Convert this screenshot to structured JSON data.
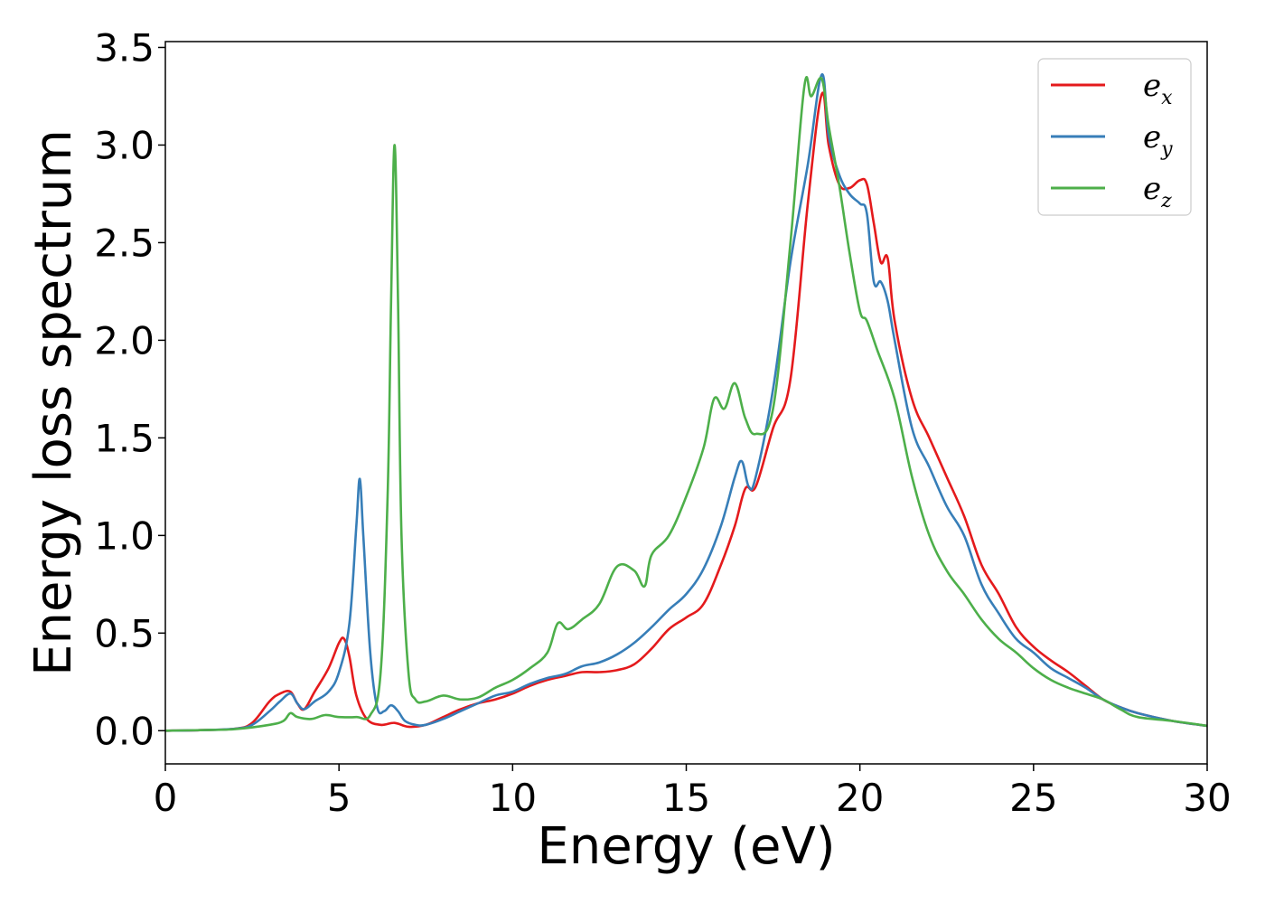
{
  "chart_data": {
    "type": "line",
    "title": "",
    "xlabel": "Energy (eV)",
    "ylabel": "Energy loss spectrum",
    "xlim": [
      0,
      30
    ],
    "ylim": [
      -0.17,
      3.53
    ],
    "xticks": [
      0,
      5,
      10,
      15,
      20,
      25,
      30
    ],
    "xtick_labels": [
      "0",
      "5",
      "10",
      "15",
      "20",
      "25",
      "30"
    ],
    "yticks": [
      0.0,
      0.5,
      1.0,
      1.5,
      2.0,
      2.5,
      3.0,
      3.5
    ],
    "ytick_labels": [
      "0.0",
      "0.5",
      "1.0",
      "1.5",
      "2.0",
      "2.5",
      "3.0",
      "3.5"
    ],
    "grid": false,
    "legend_position": "top-right",
    "series": [
      {
        "name": "e_x",
        "label_base": "e",
        "label_sub": "x",
        "color": "#e41a1c",
        "x": [
          0,
          1,
          2,
          2.5,
          3,
          3.3,
          3.6,
          3.8,
          4.0,
          4.3,
          4.7,
          5.0,
          5.15,
          5.3,
          5.5,
          5.8,
          6.2,
          6.6,
          7.0,
          7.5,
          8,
          8.5,
          9,
          9.5,
          10,
          10.5,
          11,
          11.5,
          12,
          12.5,
          13,
          13.5,
          14,
          14.5,
          15,
          15.5,
          16,
          16.4,
          16.7,
          17.0,
          17.5,
          18.0,
          18.5,
          18.9,
          19.1,
          19.4,
          19.7,
          20.0,
          20.2,
          20.4,
          20.6,
          20.8,
          21.0,
          21.5,
          22,
          22.5,
          23,
          23.5,
          24,
          24.5,
          25,
          25.5,
          26,
          26.5,
          27,
          27.5,
          28,
          29,
          30
        ],
        "y": [
          0,
          0.003,
          0.01,
          0.04,
          0.15,
          0.19,
          0.2,
          0.14,
          0.11,
          0.2,
          0.32,
          0.45,
          0.47,
          0.38,
          0.18,
          0.06,
          0.03,
          0.04,
          0.02,
          0.03,
          0.07,
          0.11,
          0.14,
          0.16,
          0.19,
          0.23,
          0.26,
          0.28,
          0.3,
          0.3,
          0.31,
          0.34,
          0.42,
          0.52,
          0.58,
          0.65,
          0.85,
          1.05,
          1.24,
          1.25,
          1.55,
          1.8,
          2.7,
          3.26,
          3.0,
          2.8,
          2.78,
          2.82,
          2.8,
          2.6,
          2.4,
          2.42,
          2.1,
          1.7,
          1.5,
          1.3,
          1.1,
          0.85,
          0.7,
          0.53,
          0.43,
          0.36,
          0.3,
          0.23,
          0.16,
          0.12,
          0.09,
          0.05,
          0.025
        ]
      },
      {
        "name": "e_y",
        "label_base": "e",
        "label_sub": "y",
        "color": "#377eb8",
        "x": [
          0,
          1,
          2,
          2.5,
          3,
          3.3,
          3.6,
          3.8,
          4.0,
          4.3,
          4.7,
          5.0,
          5.3,
          5.5,
          5.6,
          5.7,
          5.9,
          6.1,
          6.3,
          6.5,
          6.7,
          6.9,
          7.2,
          7.5,
          8,
          8.5,
          9,
          9.5,
          10,
          10.5,
          11,
          11.5,
          12,
          12.5,
          13,
          13.5,
          14,
          14.5,
          15,
          15.5,
          16,
          16.4,
          16.6,
          16.8,
          17.0,
          17.5,
          18.0,
          18.5,
          18.9,
          19.1,
          19.4,
          19.7,
          20.0,
          20.2,
          20.4,
          20.6,
          20.8,
          21.0,
          21.5,
          22,
          22.5,
          23,
          23.5,
          24,
          24.5,
          25,
          25.5,
          26,
          26.5,
          27,
          27.5,
          28,
          29,
          30
        ],
        "y": [
          0,
          0.003,
          0.01,
          0.03,
          0.1,
          0.15,
          0.19,
          0.14,
          0.11,
          0.15,
          0.2,
          0.3,
          0.55,
          1.05,
          1.29,
          1.0,
          0.4,
          0.12,
          0.1,
          0.13,
          0.1,
          0.05,
          0.03,
          0.03,
          0.06,
          0.1,
          0.14,
          0.18,
          0.2,
          0.24,
          0.27,
          0.29,
          0.33,
          0.35,
          0.39,
          0.45,
          0.53,
          0.62,
          0.7,
          0.83,
          1.05,
          1.3,
          1.38,
          1.25,
          1.3,
          1.75,
          2.4,
          2.9,
          3.36,
          3.05,
          2.85,
          2.75,
          2.7,
          2.65,
          2.3,
          2.3,
          2.2,
          2.0,
          1.55,
          1.35,
          1.15,
          1.0,
          0.75,
          0.6,
          0.47,
          0.4,
          0.32,
          0.27,
          0.22,
          0.16,
          0.12,
          0.09,
          0.05,
          0.025
        ]
      },
      {
        "name": "e_z",
        "label_base": "e",
        "label_sub": "z",
        "color": "#4daf4a",
        "x": [
          0,
          1,
          2,
          3,
          3.4,
          3.6,
          3.8,
          4.2,
          4.6,
          5,
          5.5,
          5.9,
          6.2,
          6.4,
          6.5,
          6.6,
          6.7,
          6.8,
          7.0,
          7.2,
          7.5,
          8.0,
          8.5,
          9,
          9.5,
          10,
          10.5,
          11,
          11.3,
          11.6,
          12,
          12.5,
          13,
          13.5,
          13.8,
          14,
          14.5,
          15,
          15.5,
          15.8,
          16.1,
          16.4,
          16.7,
          17.0,
          17.5,
          18.0,
          18.4,
          18.6,
          18.9,
          19.1,
          19.4,
          19.7,
          20.0,
          20.2,
          20.5,
          21.0,
          21.5,
          22,
          22.5,
          23,
          23.5,
          24,
          24.5,
          25,
          25.5,
          26,
          26.5,
          27,
          27.5,
          28,
          29,
          30
        ],
        "y": [
          0,
          0.003,
          0.008,
          0.03,
          0.05,
          0.09,
          0.07,
          0.06,
          0.08,
          0.07,
          0.07,
          0.08,
          0.3,
          1.2,
          2.2,
          3.0,
          2.2,
          1.0,
          0.3,
          0.16,
          0.15,
          0.18,
          0.16,
          0.17,
          0.22,
          0.26,
          0.32,
          0.4,
          0.55,
          0.52,
          0.57,
          0.65,
          0.84,
          0.82,
          0.74,
          0.9,
          1.0,
          1.2,
          1.45,
          1.7,
          1.65,
          1.78,
          1.6,
          1.52,
          1.65,
          2.5,
          3.3,
          3.25,
          3.34,
          3.1,
          2.8,
          2.45,
          2.15,
          2.1,
          1.95,
          1.7,
          1.3,
          1.0,
          0.82,
          0.7,
          0.57,
          0.47,
          0.4,
          0.32,
          0.26,
          0.22,
          0.19,
          0.16,
          0.11,
          0.07,
          0.05,
          0.025
        ]
      }
    ]
  }
}
